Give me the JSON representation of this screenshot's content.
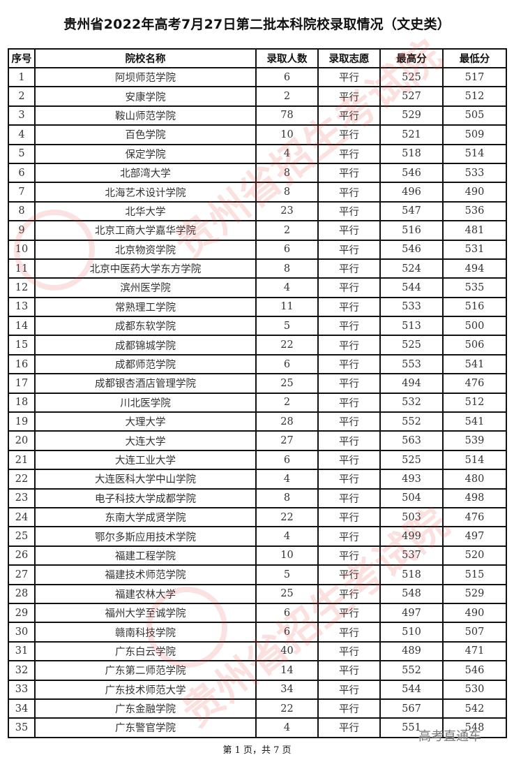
{
  "title": "贵州省2022年高考7月27日第二批本科院校录取情况（文史类）",
  "columns": [
    "序号",
    "院校名称",
    "录取人数",
    "录取志愿",
    "最高分",
    "最低分"
  ],
  "rows": [
    [
      "1",
      "阿坝师范学院",
      "6",
      "平行",
      "525",
      "517"
    ],
    [
      "2",
      "安康学院",
      "2",
      "平行",
      "527",
      "512"
    ],
    [
      "3",
      "鞍山师范学院",
      "78",
      "平行",
      "529",
      "505"
    ],
    [
      "4",
      "百色学院",
      "10",
      "平行",
      "521",
      "509"
    ],
    [
      "5",
      "保定学院",
      "4",
      "平行",
      "518",
      "514"
    ],
    [
      "6",
      "北部湾大学",
      "8",
      "平行",
      "546",
      "533"
    ],
    [
      "7",
      "北海艺术设计学院",
      "8",
      "平行",
      "496",
      "490"
    ],
    [
      "8",
      "北华大学",
      "23",
      "平行",
      "547",
      "536"
    ],
    [
      "9",
      "北京工商大学嘉华学院",
      "2",
      "平行",
      "516",
      "481"
    ],
    [
      "10",
      "北京物资学院",
      "6",
      "平行",
      "546",
      "531"
    ],
    [
      "11",
      "北京中医药大学东方学院",
      "8",
      "平行",
      "524",
      "494"
    ],
    [
      "12",
      "滨州医学院",
      "4",
      "平行",
      "544",
      "535"
    ],
    [
      "13",
      "常熟理工学院",
      "11",
      "平行",
      "533",
      "516"
    ],
    [
      "14",
      "成都东软学院",
      "5",
      "平行",
      "513",
      "500"
    ],
    [
      "15",
      "成都锦城学院",
      "22",
      "平行",
      "525",
      "506"
    ],
    [
      "16",
      "成都师范学院",
      "6",
      "平行",
      "553",
      "541"
    ],
    [
      "17",
      "成都银杏酒店管理学院",
      "25",
      "平行",
      "494",
      "476"
    ],
    [
      "18",
      "川北医学院",
      "2",
      "平行",
      "532",
      "512"
    ],
    [
      "19",
      "大理大学",
      "28",
      "平行",
      "552",
      "541"
    ],
    [
      "20",
      "大连大学",
      "27",
      "平行",
      "563",
      "539"
    ],
    [
      "21",
      "大连工业大学",
      "6",
      "平行",
      "525",
      "514"
    ],
    [
      "22",
      "大连医科大学中山学院",
      "4",
      "平行",
      "493",
      "480"
    ],
    [
      "23",
      "电子科技大学成都学院",
      "8",
      "平行",
      "504",
      "498"
    ],
    [
      "24",
      "东南大学成贤学院",
      "22",
      "平行",
      "503",
      "476"
    ],
    [
      "25",
      "鄂尔多斯应用技术学院",
      "4",
      "平行",
      "499",
      "497"
    ],
    [
      "26",
      "福建工程学院",
      "10",
      "平行",
      "537",
      "520"
    ],
    [
      "27",
      "福建技术师范学院",
      "5",
      "平行",
      "518",
      "515"
    ],
    [
      "28",
      "福建农林大学",
      "25",
      "平行",
      "548",
      "529"
    ],
    [
      "29",
      "福州大学至诚学院",
      "6",
      "平行",
      "497",
      "490"
    ],
    [
      "30",
      "赣南科技学院",
      "6",
      "平行",
      "510",
      "507"
    ],
    [
      "31",
      "广东白云学院",
      "40",
      "平行",
      "489",
      "471"
    ],
    [
      "32",
      "广东第二师范学院",
      "14",
      "平行",
      "552",
      "546"
    ],
    [
      "33",
      "广东技术师范大学",
      "34",
      "平行",
      "544",
      "530"
    ],
    [
      "34",
      "广东金融学院",
      "22",
      "平行",
      "567",
      "542"
    ],
    [
      "35",
      "广东警官学院",
      "4",
      "平行",
      "551",
      "548"
    ]
  ],
  "footer": "第 1 页，共 7 页",
  "watermark": "贵州省招生考试院",
  "corner_label": "高考直通车",
  "watermark_color": "#e63c3c"
}
